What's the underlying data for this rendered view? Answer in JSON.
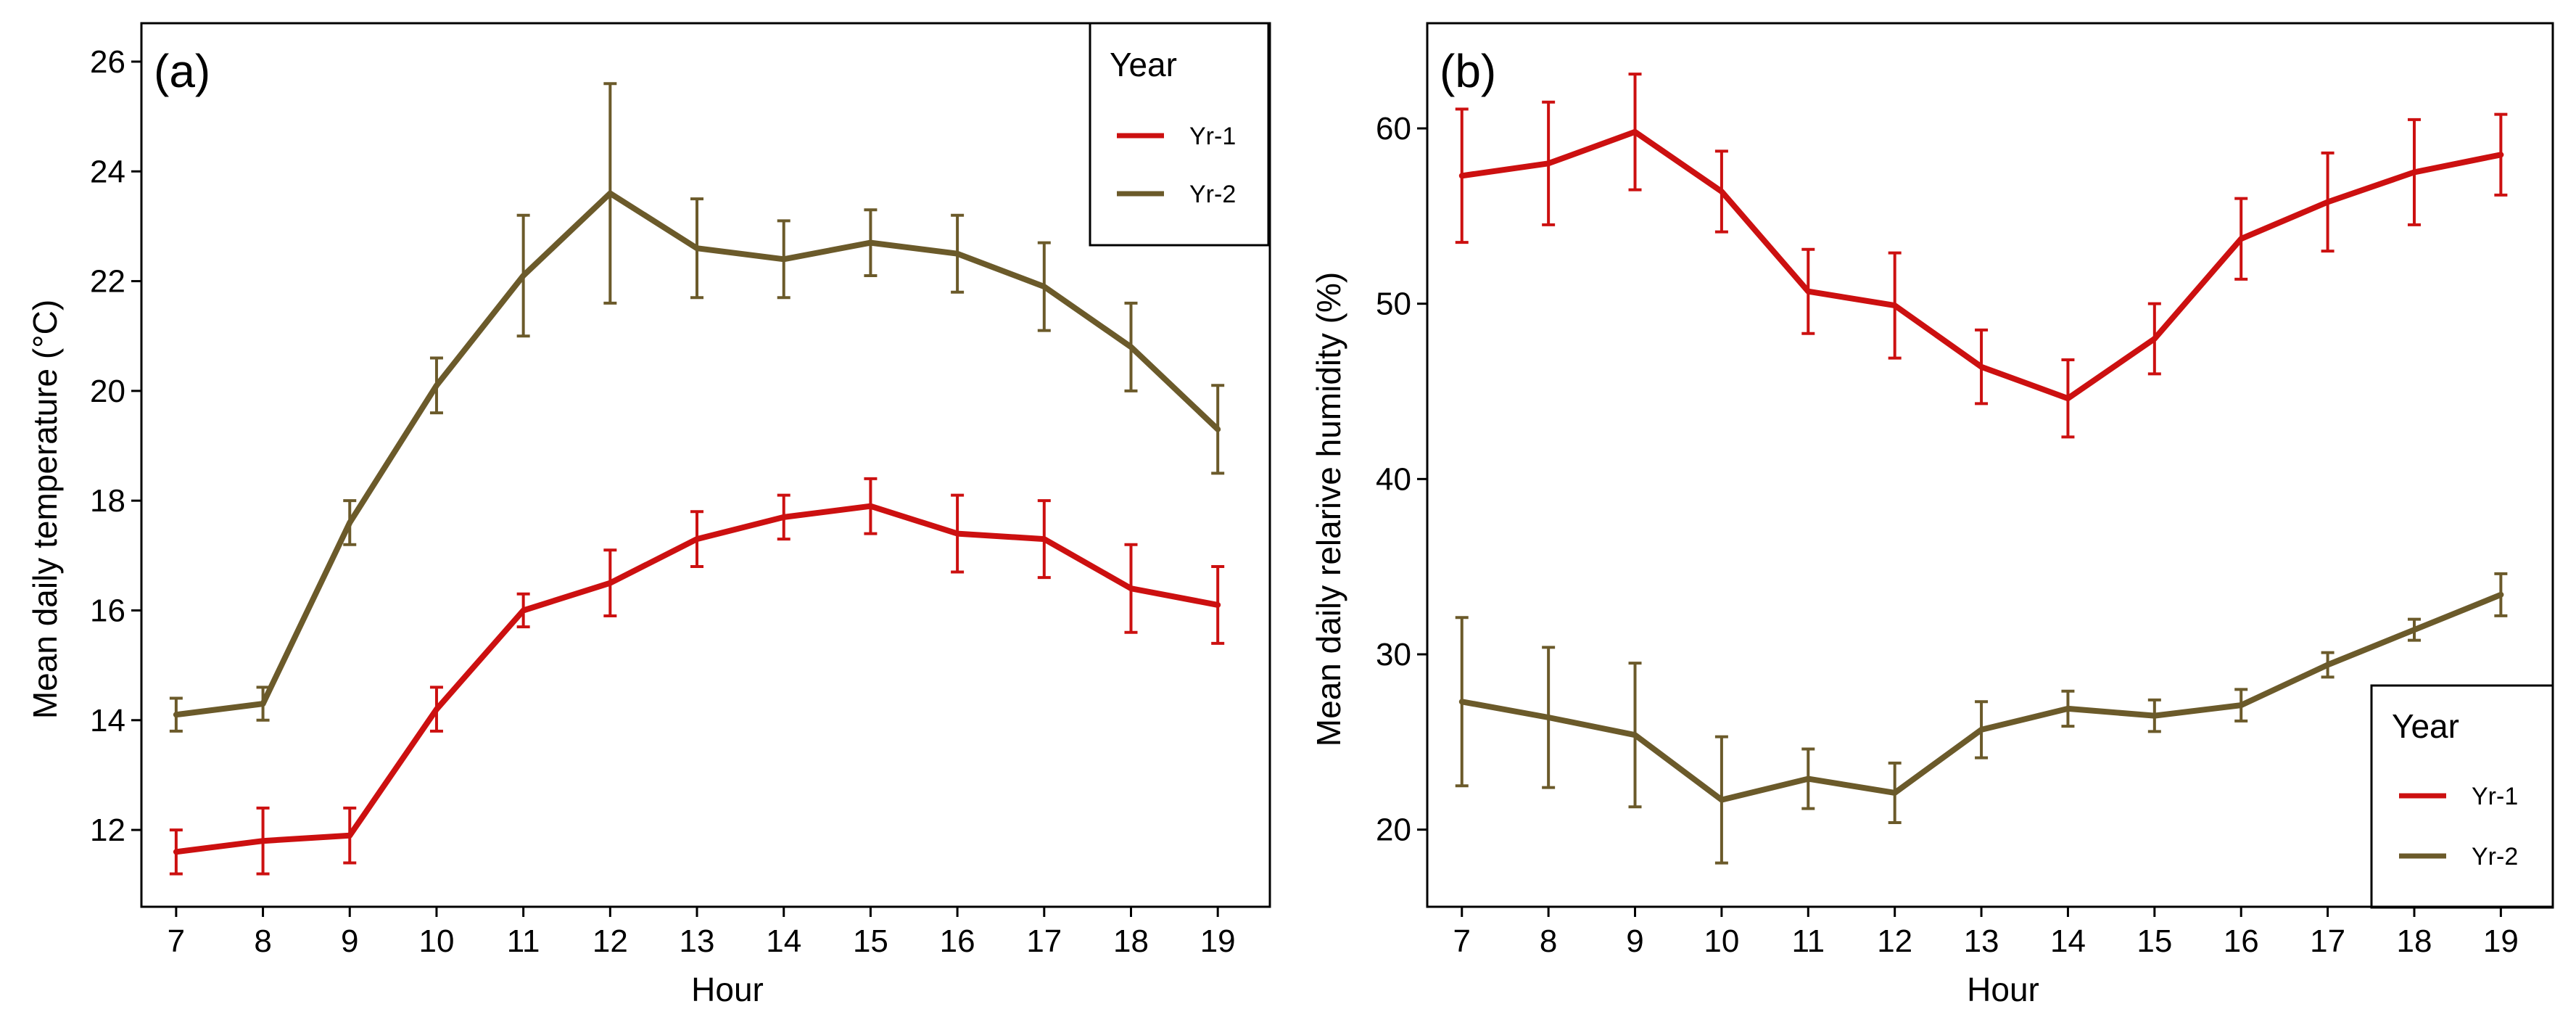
{
  "colors": {
    "yr1": "#cc1010",
    "yr2": "#6b5a2a",
    "frame": "#000000",
    "background": "#ffffff"
  },
  "legend": {
    "title": "Year",
    "items": [
      "Yr-1",
      "Yr-2"
    ]
  },
  "chart_data": [
    {
      "type": "line",
      "panel_label": "(a)",
      "title": "",
      "xlabel": "Hour",
      "ylabel": "Mean daily temperature (°C)",
      "x": [
        7,
        8,
        9,
        10,
        11,
        12,
        13,
        14,
        15,
        16,
        17,
        18,
        19
      ],
      "xlim": [
        6.6,
        19.6
      ],
      "ylim": [
        10.6,
        26.7
      ],
      "yticks": [
        12,
        14,
        16,
        18,
        20,
        22,
        24,
        26
      ],
      "legend_position": "top-right",
      "error_bars": true,
      "series": [
        {
          "name": "Yr-1",
          "values": [
            11.6,
            11.8,
            11.9,
            14.2,
            16.0,
            16.5,
            17.3,
            17.7,
            17.9,
            17.4,
            17.3,
            16.4,
            16.1
          ],
          "errors": [
            0.4,
            0.6,
            0.5,
            0.4,
            0.3,
            0.6,
            0.5,
            0.4,
            0.5,
            0.7,
            0.7,
            0.8,
            0.7
          ]
        },
        {
          "name": "Yr-2",
          "values": [
            14.1,
            14.3,
            17.6,
            20.1,
            22.1,
            23.6,
            22.6,
            22.4,
            22.7,
            22.5,
            21.9,
            20.8,
            19.3
          ],
          "errors": [
            0.3,
            0.3,
            0.4,
            0.5,
            1.1,
            2.0,
            0.9,
            0.7,
            0.6,
            0.7,
            0.8,
            0.8,
            0.8
          ]
        }
      ]
    },
    {
      "type": "line",
      "panel_label": "(b)",
      "title": "",
      "xlabel": "Hour",
      "ylabel": "Mean daily relarive humidity (%)",
      "x": [
        7,
        8,
        9,
        10,
        11,
        12,
        13,
        14,
        15,
        16,
        17,
        18,
        19
      ],
      "xlim": [
        6.6,
        19.6
      ],
      "ylim": [
        15.6,
        66.0
      ],
      "yticks": [
        20,
        30,
        40,
        50,
        60
      ],
      "legend_position": "bottom-right",
      "error_bars": true,
      "series": [
        {
          "name": "Yr-1",
          "values": [
            57.3,
            58.0,
            59.8,
            56.4,
            50.7,
            49.9,
            46.4,
            44.6,
            48.0,
            53.7,
            55.8,
            57.5,
            58.5
          ],
          "errors": [
            3.8,
            3.5,
            3.3,
            2.3,
            2.4,
            3.0,
            2.1,
            2.2,
            2.0,
            2.3,
            2.8,
            3.0,
            2.3
          ]
        },
        {
          "name": "Yr-2",
          "values": [
            27.3,
            26.4,
            25.4,
            21.7,
            22.9,
            22.1,
            25.7,
            26.9,
            26.5,
            27.1,
            29.4,
            31.4,
            33.4
          ],
          "errors": [
            4.8,
            4.0,
            4.1,
            3.6,
            1.7,
            1.7,
            1.6,
            1.0,
            0.9,
            0.9,
            0.7,
            0.6,
            1.2
          ]
        }
      ]
    }
  ]
}
